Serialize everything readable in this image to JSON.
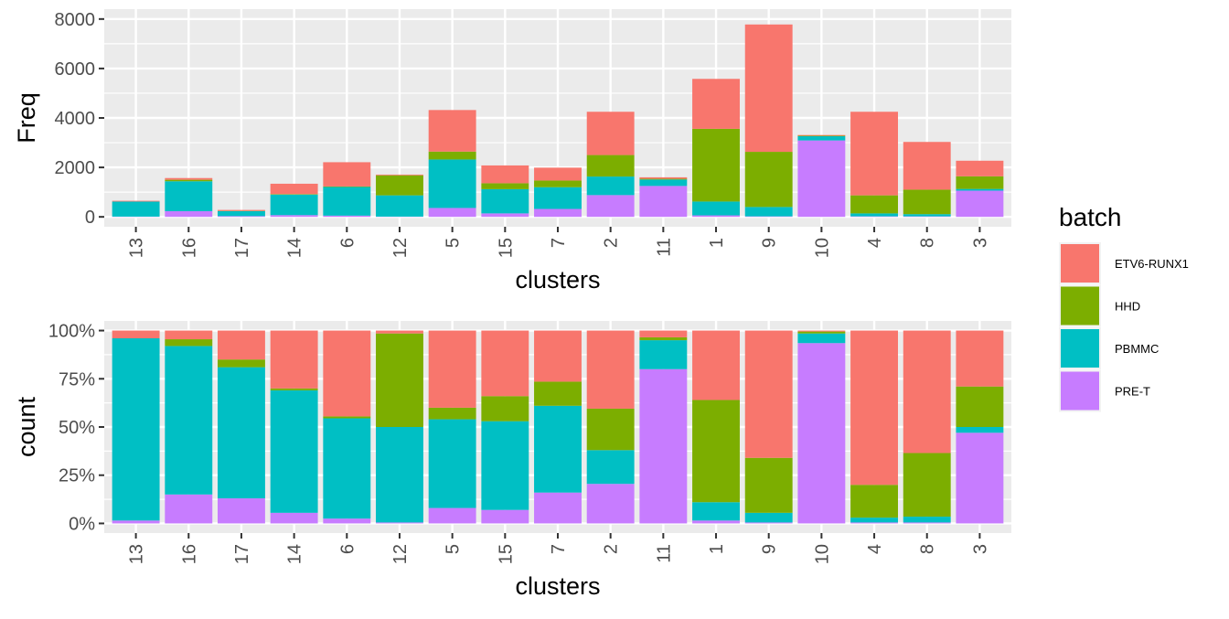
{
  "legend": {
    "title": "batch",
    "items": [
      {
        "label": "ETV6-RUNX1",
        "color": "#F8766D"
      },
      {
        "label": "HHD",
        "color": "#7CAE00"
      },
      {
        "label": "PBMMC",
        "color": "#00BFC4"
      },
      {
        "label": "PRE-T",
        "color": "#C77CFF"
      }
    ]
  },
  "chart_data": [
    {
      "type": "bar",
      "stacked": true,
      "xlabel": "clusters",
      "ylabel": "Freq",
      "ylim": [
        0,
        8000
      ],
      "yticks": [
        0,
        2000,
        4000,
        6000,
        8000
      ],
      "ytick_labels": [
        "0",
        "2000",
        "4000",
        "6000",
        "8000"
      ],
      "categories": [
        "13",
        "16",
        "17",
        "14",
        "6",
        "12",
        "5",
        "15",
        "7",
        "2",
        "11",
        "1",
        "9",
        "10",
        "4",
        "8",
        "3"
      ],
      "series": [
        {
          "name": "PRE-T",
          "values": [
            10,
            230,
            30,
            70,
            50,
            10,
            360,
            140,
            320,
            880,
            1250,
            60,
            20,
            3090,
            20,
            20,
            1060
          ]
        },
        {
          "name": "PBMMC",
          "values": [
            610,
            1210,
            200,
            830,
            1160,
            860,
            1960,
            980,
            880,
            750,
            260,
            560,
            380,
            170,
            120,
            90,
            70
          ]
        },
        {
          "name": "HHD",
          "values": [
            0,
            60,
            10,
            20,
            20,
            810,
            320,
            240,
            270,
            870,
            30,
            2940,
            2230,
            20,
            730,
            990,
            510
          ]
        },
        {
          "name": "ETV6-RUNX1",
          "values": [
            30,
            70,
            40,
            420,
            980,
            30,
            1680,
            720,
            520,
            1750,
            60,
            2020,
            5150,
            30,
            3380,
            1930,
            630
          ]
        }
      ]
    },
    {
      "type": "bar",
      "stacked": true,
      "position": "fill",
      "xlabel": "clusters",
      "ylabel": "count",
      "ylim": [
        0,
        1
      ],
      "yticks": [
        0,
        0.25,
        0.5,
        0.75,
        1
      ],
      "ytick_labels": [
        "0%",
        "25%",
        "50%",
        "75%",
        "100%"
      ],
      "categories": [
        "13",
        "16",
        "17",
        "14",
        "6",
        "12",
        "5",
        "15",
        "7",
        "2",
        "11",
        "1",
        "9",
        "10",
        "4",
        "8",
        "3"
      ],
      "series": [
        {
          "name": "PRE-T",
          "values": [
            0.015,
            0.15,
            0.13,
            0.055,
            0.025,
            0.005,
            0.08,
            0.07,
            0.16,
            0.205,
            0.8,
            0.015,
            0.005,
            0.935,
            0.005,
            0.005,
            0.47
          ]
        },
        {
          "name": "PBMMC",
          "values": [
            0.945,
            0.77,
            0.68,
            0.635,
            0.52,
            0.495,
            0.46,
            0.46,
            0.45,
            0.175,
            0.15,
            0.095,
            0.05,
            0.05,
            0.025,
            0.03,
            0.03
          ]
        },
        {
          "name": "HHD",
          "values": [
            0.0,
            0.035,
            0.04,
            0.01,
            0.01,
            0.485,
            0.06,
            0.13,
            0.125,
            0.215,
            0.015,
            0.53,
            0.285,
            0.01,
            0.17,
            0.33,
            0.21
          ]
        },
        {
          "name": "ETV6-RUNX1",
          "values": [
            0.04,
            0.045,
            0.15,
            0.3,
            0.445,
            0.015,
            0.4,
            0.34,
            0.265,
            0.405,
            0.035,
            0.36,
            0.66,
            0.005,
            0.8,
            0.635,
            0.29
          ]
        }
      ]
    }
  ]
}
